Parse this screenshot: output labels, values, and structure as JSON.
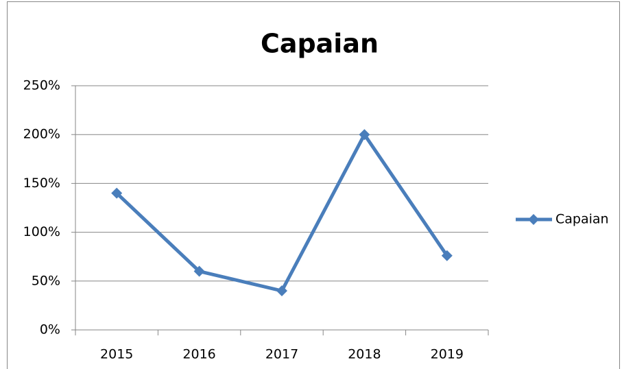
{
  "chart_data": {
    "type": "line",
    "title": "Capaian",
    "categories": [
      "2015",
      "2016",
      "2017",
      "2018",
      "2019"
    ],
    "series": [
      {
        "name": "Capaian",
        "color": "#4a7ebb",
        "values": [
          140,
          60,
          40,
          200,
          76
        ]
      }
    ],
    "ylim": [
      0,
      250
    ],
    "yticks": [
      {
        "value": 0,
        "label": "0%"
      },
      {
        "value": 50,
        "label": "50%"
      },
      {
        "value": 100,
        "label": "100%"
      },
      {
        "value": 150,
        "label": "150%"
      },
      {
        "value": 200,
        "label": "200%"
      },
      {
        "value": 250,
        "label": "250%"
      }
    ],
    "grid": true,
    "legend": "right"
  }
}
